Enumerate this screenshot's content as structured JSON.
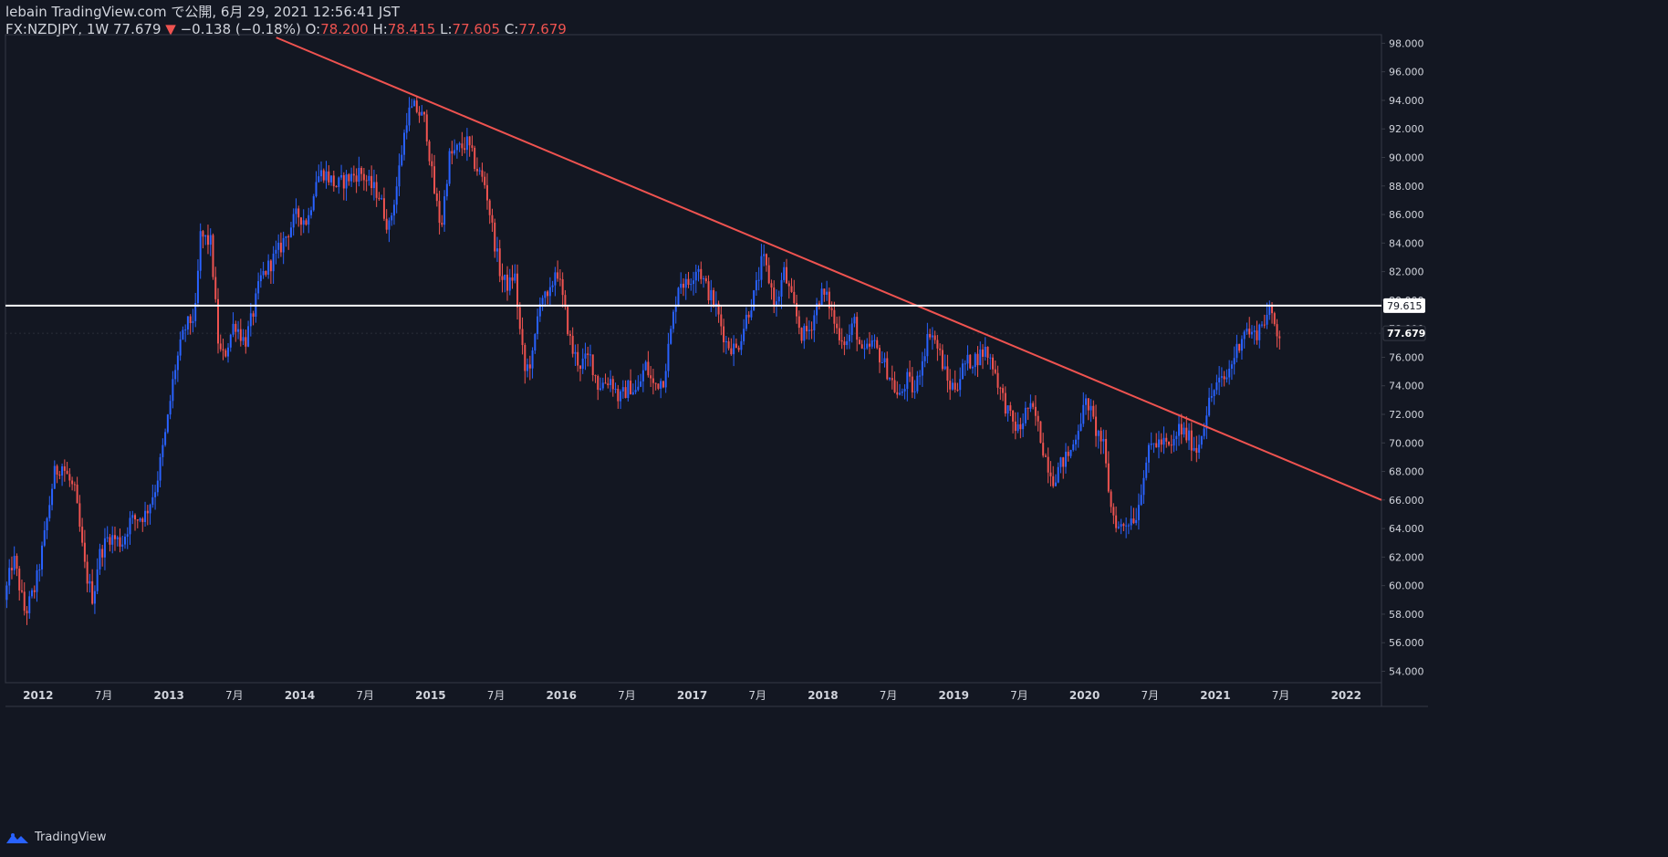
{
  "header": {
    "published_line": "lebain TradingView.com で公開, 6月 29, 2021 12:56:41 JST",
    "symbol": "FX:NZDJPY, 1W",
    "last": "77.679",
    "arrow": "▼",
    "change": "−0.138 (−0.18%)",
    "o_label": "O:",
    "o_value": "78.200",
    "h_label": "H:",
    "h_value": "78.415",
    "l_label": "L:",
    "l_value": "77.605",
    "c_label": "C:",
    "c_value": "77.679"
  },
  "footer": {
    "brand": "TradingView"
  },
  "colors": {
    "background": "#131722",
    "up": "#2962ff",
    "down": "#ef5350",
    "trendline": "#ef5350",
    "hline": "#ffffff",
    "axis_text": "#d1d4dc",
    "grid": "#2a2e39"
  },
  "chart_data": {
    "type": "candlestick",
    "title": "FX:NZDJPY, 1W",
    "ylim": [
      53.2,
      98.6
    ],
    "xlim": [
      2011.75,
      2022.27
    ],
    "y_ticks": [
      "54.000",
      "56.000",
      "58.000",
      "60.000",
      "62.000",
      "64.000",
      "66.000",
      "68.000",
      "70.000",
      "72.000",
      "74.000",
      "76.000",
      "78.000",
      "80.000",
      "82.000",
      "84.000",
      "86.000",
      "88.000",
      "90.000",
      "92.000",
      "94.000",
      "96.000",
      "98.000"
    ],
    "x_ticks": [
      {
        "t": 2012.0,
        "label": "2012",
        "bold": true
      },
      {
        "t": 2012.5,
        "label": "7月",
        "bold": false
      },
      {
        "t": 2013.0,
        "label": "2013",
        "bold": true
      },
      {
        "t": 2013.5,
        "label": "7月",
        "bold": false
      },
      {
        "t": 2014.0,
        "label": "2014",
        "bold": true
      },
      {
        "t": 2014.5,
        "label": "7月",
        "bold": false
      },
      {
        "t": 2015.0,
        "label": "2015",
        "bold": true
      },
      {
        "t": 2015.5,
        "label": "7月",
        "bold": false
      },
      {
        "t": 2016.0,
        "label": "2016",
        "bold": true
      },
      {
        "t": 2016.5,
        "label": "7月",
        "bold": false
      },
      {
        "t": 2017.0,
        "label": "2017",
        "bold": true
      },
      {
        "t": 2017.5,
        "label": "7月",
        "bold": false
      },
      {
        "t": 2018.0,
        "label": "2018",
        "bold": true
      },
      {
        "t": 2018.5,
        "label": "7月",
        "bold": false
      },
      {
        "t": 2019.0,
        "label": "2019",
        "bold": true
      },
      {
        "t": 2019.5,
        "label": "7月",
        "bold": false
      },
      {
        "t": 2020.0,
        "label": "2020",
        "bold": true
      },
      {
        "t": 2020.5,
        "label": "7月",
        "bold": false
      },
      {
        "t": 2021.0,
        "label": "2021",
        "bold": true
      },
      {
        "t": 2021.5,
        "label": "7月",
        "bold": false
      },
      {
        "t": 2022.0,
        "label": "2022",
        "bold": true
      }
    ],
    "horizontal_line": {
      "value": 79.615,
      "label": "79.615"
    },
    "last_price": {
      "value": 77.679,
      "label": "77.679"
    },
    "trendline": {
      "t1": 2013.82,
      "v1": 98.4,
      "t2": 2022.27,
      "v2": 66.0
    },
    "series_anchors": [
      [
        2011.76,
        59.0
      ],
      [
        2011.83,
        62.0
      ],
      [
        2011.92,
        58.0
      ],
      [
        2012.0,
        60.0
      ],
      [
        2012.06,
        63.0
      ],
      [
        2012.14,
        67.8
      ],
      [
        2012.2,
        68.5
      ],
      [
        2012.3,
        66.5
      ],
      [
        2012.38,
        61.0
      ],
      [
        2012.44,
        59.0
      ],
      [
        2012.48,
        62.0
      ],
      [
        2012.56,
        63.5
      ],
      [
        2012.66,
        63.0
      ],
      [
        2012.72,
        64.5
      ],
      [
        2012.84,
        65.0
      ],
      [
        2012.92,
        67.0
      ],
      [
        2013.0,
        71.0
      ],
      [
        2013.06,
        75.0
      ],
      [
        2013.14,
        78.0
      ],
      [
        2013.22,
        79.0
      ],
      [
        2013.26,
        84.5
      ],
      [
        2013.34,
        84.0
      ],
      [
        2013.4,
        76.5
      ],
      [
        2013.44,
        76.0
      ],
      [
        2013.52,
        78.5
      ],
      [
        2013.6,
        77.0
      ],
      [
        2013.66,
        79.0
      ],
      [
        2013.72,
        81.5
      ],
      [
        2013.86,
        83.5
      ],
      [
        2013.94,
        85.0
      ],
      [
        2014.0,
        86.0
      ],
      [
        2014.08,
        85.5
      ],
      [
        2014.14,
        88.5
      ],
      [
        2014.2,
        89.0
      ],
      [
        2014.3,
        88.0
      ],
      [
        2014.38,
        88.5
      ],
      [
        2014.48,
        89.0
      ],
      [
        2014.56,
        88.0
      ],
      [
        2014.62,
        87.5
      ],
      [
        2014.7,
        85.0
      ],
      [
        2014.76,
        88.0
      ],
      [
        2014.84,
        93.0
      ],
      [
        2014.9,
        93.5
      ],
      [
        2014.98,
        92.5
      ],
      [
        2015.04,
        88.0
      ],
      [
        2015.1,
        85.0
      ],
      [
        2015.16,
        90.0
      ],
      [
        2015.22,
        90.5
      ],
      [
        2015.3,
        91.0
      ],
      [
        2015.36,
        89.5
      ],
      [
        2015.44,
        88.0
      ],
      [
        2015.5,
        84.5
      ],
      [
        2015.56,
        81.5
      ],
      [
        2015.62,
        81.0
      ],
      [
        2015.66,
        82.0
      ],
      [
        2015.7,
        78.0
      ],
      [
        2015.74,
        75.0
      ],
      [
        2015.8,
        76.0
      ],
      [
        2015.86,
        80.5
      ],
      [
        2015.92,
        79.8
      ],
      [
        2015.98,
        82.5
      ],
      [
        2016.04,
        79.5
      ],
      [
        2016.1,
        76.5
      ],
      [
        2016.16,
        75.5
      ],
      [
        2016.24,
        76.0
      ],
      [
        2016.3,
        74.0
      ],
      [
        2016.4,
        74.5
      ],
      [
        2016.46,
        73.0
      ],
      [
        2016.54,
        74.0
      ],
      [
        2016.6,
        73.5
      ],
      [
        2016.66,
        75.5
      ],
      [
        2016.72,
        74.0
      ],
      [
        2016.8,
        74.5
      ],
      [
        2016.86,
        78.0
      ],
      [
        2016.92,
        81.5
      ],
      [
        2016.98,
        81.0
      ],
      [
        2017.06,
        82.5
      ],
      [
        2017.12,
        81.0
      ],
      [
        2017.2,
        79.5
      ],
      [
        2017.28,
        77.0
      ],
      [
        2017.36,
        76.5
      ],
      [
        2017.44,
        79.0
      ],
      [
        2017.5,
        80.5
      ],
      [
        2017.56,
        83.0
      ],
      [
        2017.62,
        81.0
      ],
      [
        2017.66,
        79.5
      ],
      [
        2017.72,
        82.0
      ],
      [
        2017.78,
        80.0
      ],
      [
        2017.86,
        77.5
      ],
      [
        2017.92,
        78.0
      ],
      [
        2018.0,
        80.5
      ],
      [
        2018.06,
        80.0
      ],
      [
        2018.12,
        78.0
      ],
      [
        2018.2,
        77.0
      ],
      [
        2018.26,
        78.5
      ],
      [
        2018.32,
        76.0
      ],
      [
        2018.4,
        77.0
      ],
      [
        2018.46,
        76.0
      ],
      [
        2018.54,
        74.5
      ],
      [
        2018.6,
        73.0
      ],
      [
        2018.66,
        74.5
      ],
      [
        2018.72,
        73.5
      ],
      [
        2018.78,
        76.0
      ],
      [
        2018.84,
        78.0
      ],
      [
        2018.92,
        76.0
      ],
      [
        2018.98,
        74.0
      ],
      [
        2019.04,
        74.0
      ],
      [
        2019.1,
        75.5
      ],
      [
        2019.2,
        76.0
      ],
      [
        2019.26,
        76.5
      ],
      [
        2019.32,
        75.5
      ],
      [
        2019.38,
        73.5
      ],
      [
        2019.46,
        71.5
      ],
      [
        2019.52,
        70.8
      ],
      [
        2019.58,
        72.5
      ],
      [
        2019.64,
        72.0
      ],
      [
        2019.72,
        69.0
      ],
      [
        2019.78,
        67.5
      ],
      [
        2019.84,
        68.5
      ],
      [
        2019.92,
        69.5
      ],
      [
        2019.98,
        71.5
      ],
      [
        2020.04,
        73.0
      ],
      [
        2020.1,
        71.0
      ],
      [
        2020.16,
        70.0
      ],
      [
        2020.22,
        65.5
      ],
      [
        2020.28,
        64.0
      ],
      [
        2020.34,
        64.5
      ],
      [
        2020.42,
        65.0
      ],
      [
        2020.48,
        68.5
      ],
      [
        2020.54,
        70.0
      ],
      [
        2020.62,
        70.0
      ],
      [
        2020.68,
        69.5
      ],
      [
        2020.74,
        71.0
      ],
      [
        2020.8,
        70.5
      ],
      [
        2020.88,
        69.5
      ],
      [
        2020.96,
        72.5
      ],
      [
        2021.02,
        74.0
      ],
      [
        2021.1,
        74.5
      ],
      [
        2021.16,
        76.0
      ],
      [
        2021.24,
        78.0
      ],
      [
        2021.32,
        77.5
      ],
      [
        2021.38,
        78.5
      ],
      [
        2021.44,
        79.2
      ],
      [
        2021.5,
        77.679
      ]
    ]
  }
}
